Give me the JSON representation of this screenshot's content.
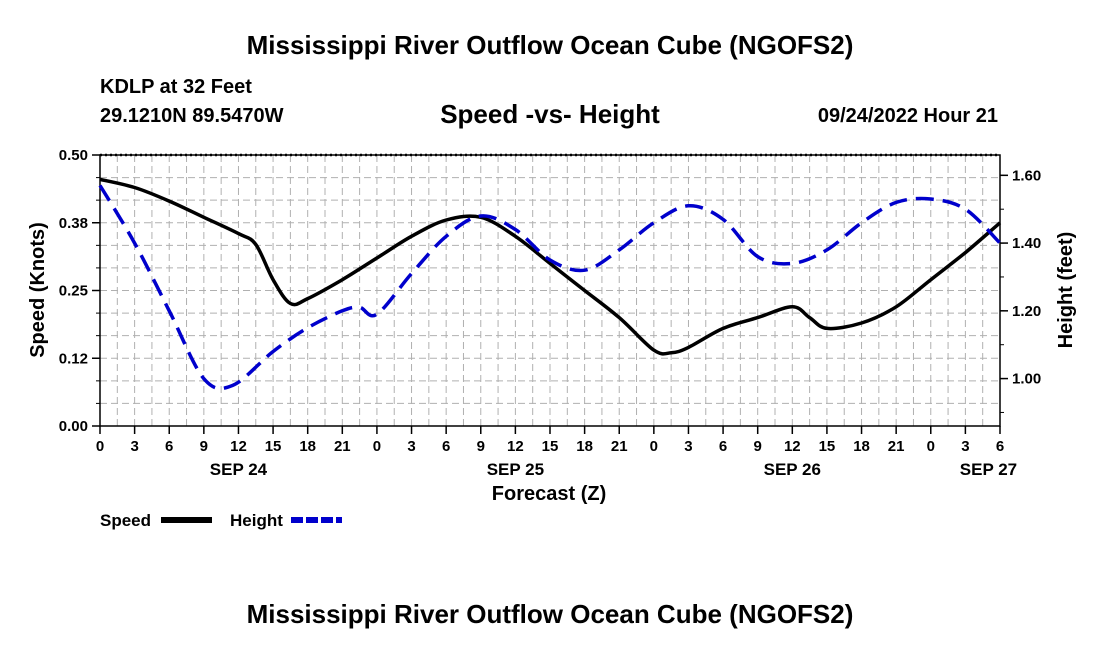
{
  "page": {
    "title_top": "Mississippi River Outflow Ocean Cube (NGOFS2)",
    "title_bottom": "Mississippi River Outflow Ocean Cube (NGOFS2)",
    "station": "KDLP at 32 Feet",
    "coords": "29.1210N  89.5470W",
    "datetime": "09/24/2022 Hour 21"
  },
  "chart_data": {
    "type": "line",
    "title": "Speed -vs- Height",
    "xlabel": "Forecast (Z)",
    "ylabel": "Speed (Knots)",
    "y2label": "Height (feet)",
    "xlim": [
      0,
      78
    ],
    "ylim": [
      0,
      0.5
    ],
    "y2lim": [
      0.86,
      1.66
    ],
    "x_ticks": [
      0,
      3,
      6,
      9,
      12,
      15,
      18,
      21,
      24,
      27,
      30,
      33,
      36,
      39,
      42,
      45,
      48,
      51,
      54,
      57,
      60,
      63,
      66,
      69,
      72,
      75,
      78
    ],
    "x_tick_labels": [
      "0",
      "3",
      "6",
      "9",
      "12",
      "15",
      "18",
      "21",
      "0",
      "3",
      "6",
      "9",
      "12",
      "15",
      "18",
      "21",
      "0",
      "3",
      "6",
      "9",
      "12",
      "15",
      "18",
      "21",
      "0",
      "3",
      "6"
    ],
    "date_labels": [
      {
        "x": 12,
        "label": "SEP 24"
      },
      {
        "x": 36,
        "label": "SEP 25"
      },
      {
        "x": 60,
        "label": "SEP 26"
      },
      {
        "x": 77,
        "label": "SEP 27"
      }
    ],
    "y_ticks": [
      0,
      0.125,
      0.25,
      0.375,
      0.5
    ],
    "y_tick_labels": [
      "0.00",
      "0.12",
      "0.25",
      "0.38",
      "0.50"
    ],
    "y2_ticks": [
      1.0,
      1.2,
      1.4,
      1.6
    ],
    "y2_tick_labels": [
      "1.00",
      "1.20",
      "1.40",
      "1.60"
    ],
    "x_grid": [
      1.5,
      4.5,
      7.5,
      10.5,
      13.5,
      16.5,
      19.5,
      22.5,
      25.5,
      28.5,
      31.5,
      34.5,
      37.5,
      40.5,
      43.5,
      46.5,
      49.5,
      52.5,
      55.5,
      58.5,
      61.5,
      64.5,
      67.5,
      70.5,
      73.5,
      76.5
    ],
    "y_grid": [
      0.0417,
      0.0833,
      0.1667,
      0.2083,
      0.2917,
      0.3333,
      0.4167,
      0.4583
    ],
    "series": [
      {
        "name": "Speed",
        "axis": "left",
        "color": "#000000",
        "dash": "solid",
        "x": [
          0,
          3,
          6,
          9,
          12,
          13.5,
          15,
          16.5,
          18,
          21,
          24,
          27,
          30,
          33,
          36,
          39,
          42,
          45,
          48,
          49.5,
          51,
          54,
          57,
          60,
          61.5,
          63,
          66,
          69,
          72,
          75,
          78
        ],
        "y": [
          0.455,
          0.44,
          0.415,
          0.385,
          0.355,
          0.335,
          0.27,
          0.226,
          0.235,
          0.27,
          0.31,
          0.35,
          0.38,
          0.385,
          0.35,
          0.3,
          0.25,
          0.2,
          0.14,
          0.135,
          0.145,
          0.18,
          0.2,
          0.22,
          0.2,
          0.18,
          0.19,
          0.22,
          0.27,
          0.32,
          0.375
        ]
      },
      {
        "name": "Height",
        "axis": "right",
        "color": "#0000cc",
        "dash": "dashed",
        "x": [
          0,
          3,
          6,
          9,
          11.5,
          15,
          18,
          21,
          22.5,
          24,
          27,
          30,
          33,
          36,
          39,
          42,
          45,
          48,
          51,
          54,
          57,
          60,
          63,
          66,
          69,
          72,
          75,
          78
        ],
        "y": [
          1.57,
          1.4,
          1.2,
          1.0,
          0.98,
          1.08,
          1.15,
          1.2,
          1.21,
          1.19,
          1.31,
          1.42,
          1.48,
          1.44,
          1.35,
          1.32,
          1.38,
          1.46,
          1.51,
          1.47,
          1.36,
          1.34,
          1.38,
          1.46,
          1.52,
          1.53,
          1.5,
          1.4
        ]
      }
    ],
    "legend": [
      {
        "label": "Speed",
        "color": "#000000",
        "dash": "solid"
      },
      {
        "label": "Height",
        "color": "#0000cc",
        "dash": "dashed"
      }
    ]
  }
}
